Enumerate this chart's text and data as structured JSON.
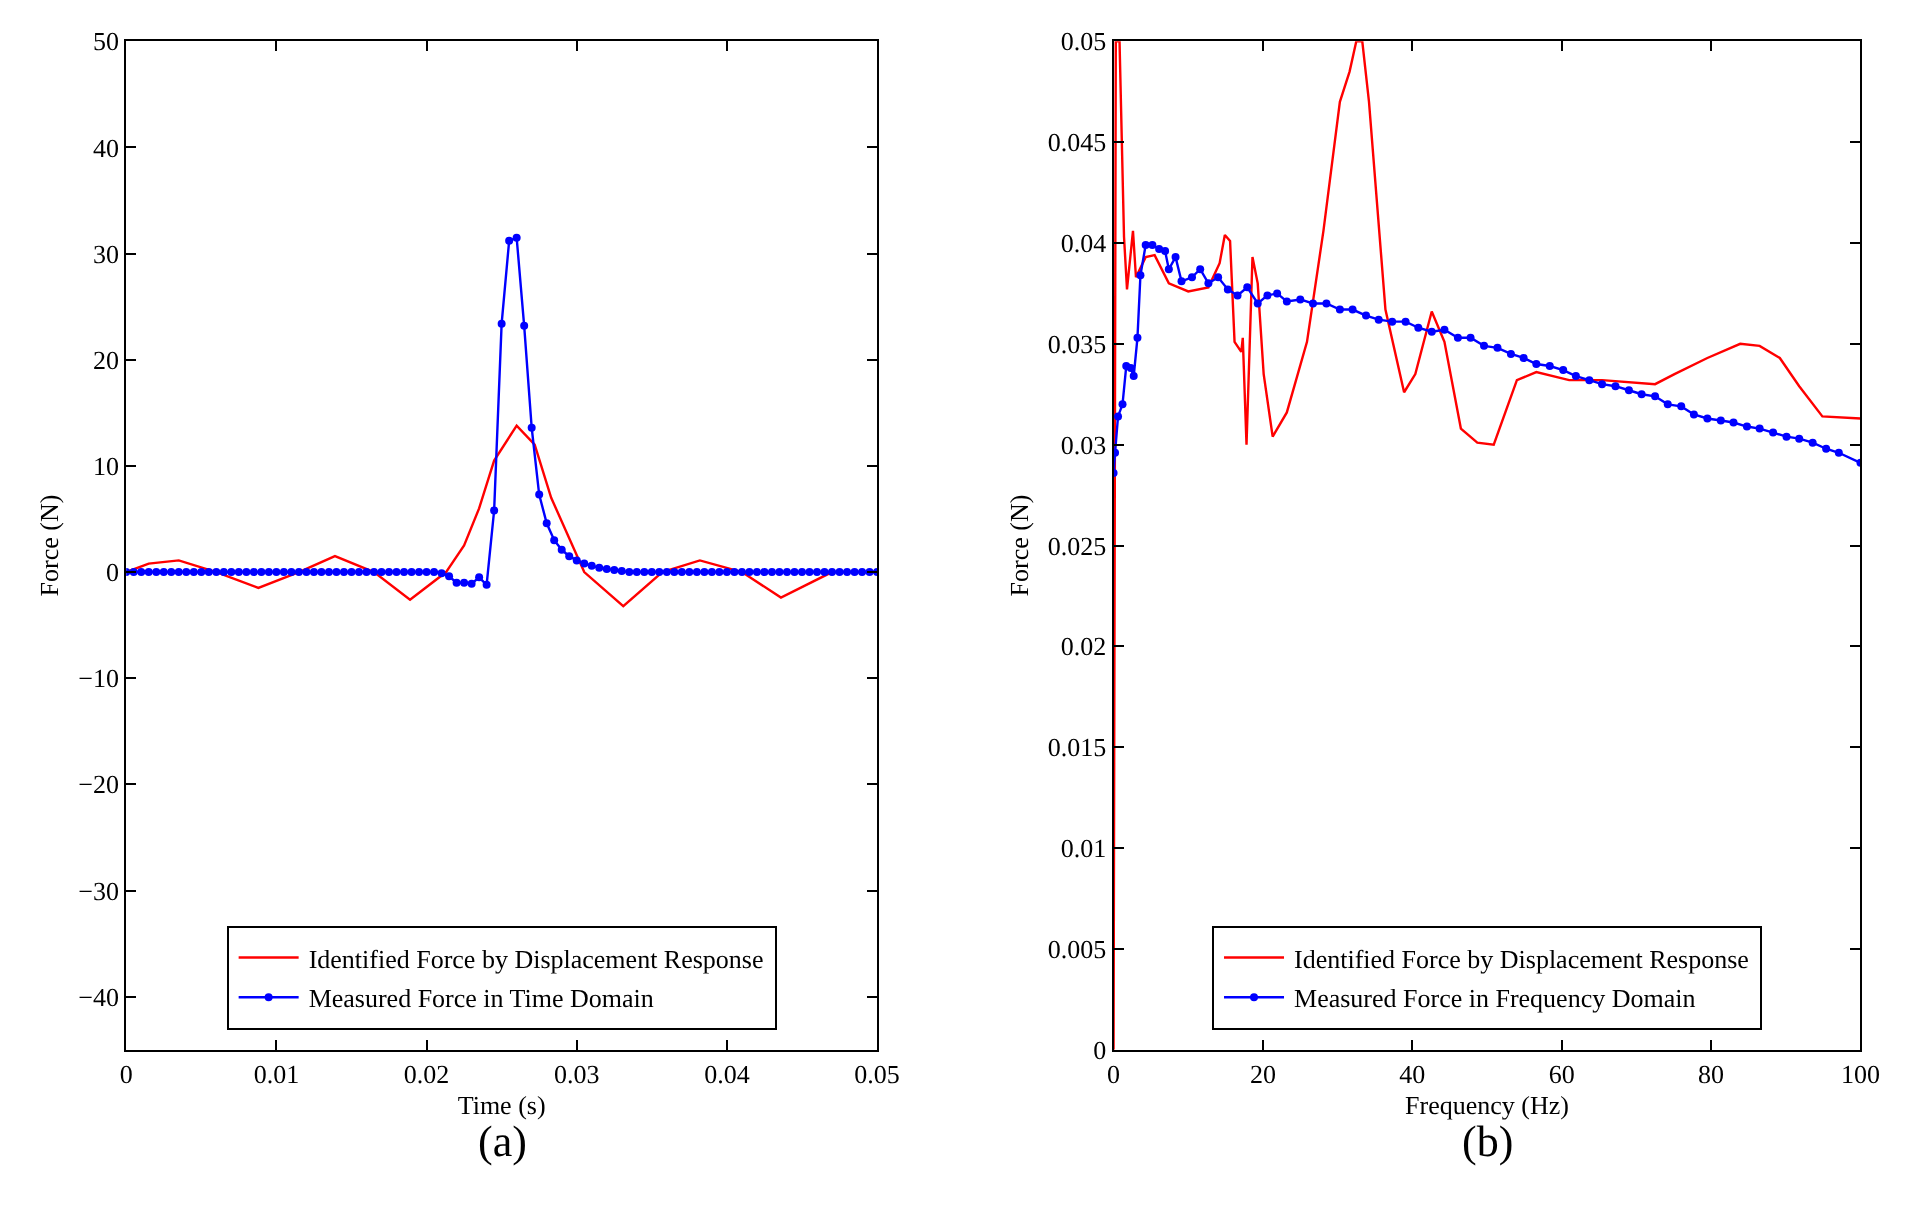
{
  "chart_data": [
    {
      "type": "line",
      "xlabel": "Time (s)",
      "ylabel": "Force (N)",
      "annotations": [
        "(a)"
      ],
      "xlim": [
        0,
        0.05
      ],
      "xticks": [
        0,
        0.01,
        0.02,
        0.03,
        0.04,
        0.05
      ],
      "ylim": [
        -45,
        50
      ],
      "yticks": [
        {
          "value": -40,
          "label": "−40"
        },
        {
          "value": -30,
          "label": "−30"
        },
        {
          "value": -20,
          "label": "−20"
        },
        {
          "value": -10,
          "label": "−10"
        },
        0,
        10,
        20,
        30,
        40,
        50
      ],
      "legend": "bottom",
      "series": [
        {
          "name": "Identified Force by Displacement Response",
          "color": "#ff0000",
          "marker": "none",
          "x": [
            0,
            0.0015,
            0.0035,
            0.006,
            0.0088,
            0.0115,
            0.0139,
            0.0165,
            0.0189,
            0.0213,
            0.0225,
            0.0235,
            0.0245,
            0.026,
            0.0272,
            0.0283,
            0.0305,
            0.0331,
            0.0357,
            0.0382,
            0.041,
            0.0436,
            0.047,
            0.05
          ],
          "values": [
            0,
            0.8,
            1.1,
            0,
            -1.5,
            0,
            1.5,
            0,
            -2.6,
            0,
            2.5,
            6,
            10.5,
            13.8,
            12,
            7,
            0,
            -3.2,
            0,
            1.1,
            0,
            -2.4,
            0,
            0
          ]
        },
        {
          "name": "Measured Force in Time Domain",
          "color": "#0000ff",
          "marker": "circle",
          "x": [
            0,
            0.0005,
            0.001,
            0.0015,
            0.002,
            0.0025,
            0.003,
            0.0035,
            0.004,
            0.0045,
            0.005,
            0.0055,
            0.006,
            0.0065,
            0.007,
            0.0075,
            0.008,
            0.0085,
            0.009,
            0.0095,
            0.01,
            0.0105,
            0.011,
            0.0115,
            0.012,
            0.0125,
            0.013,
            0.0135,
            0.014,
            0.0145,
            0.015,
            0.0155,
            0.016,
            0.0165,
            0.017,
            0.0175,
            0.018,
            0.0185,
            0.019,
            0.0195,
            0.02,
            0.0205,
            0.021,
            0.0215,
            0.022,
            0.0225,
            0.023,
            0.0235,
            0.024,
            0.0245,
            0.025,
            0.0255,
            0.026,
            0.0265,
            0.027,
            0.0275,
            0.028,
            0.0285,
            0.029,
            0.0295,
            0.03,
            0.0305,
            0.031,
            0.0315,
            0.032,
            0.0325,
            0.033,
            0.0335,
            0.034,
            0.0345,
            0.035,
            0.0355,
            0.036,
            0.0365,
            0.037,
            0.0375,
            0.038,
            0.0385,
            0.039,
            0.0395,
            0.04,
            0.0405,
            0.041,
            0.0415,
            0.042,
            0.0425,
            0.043,
            0.0435,
            0.044,
            0.0445,
            0.045,
            0.0455,
            0.046,
            0.0465,
            0.047,
            0.0475,
            0.048,
            0.0485,
            0.049,
            0.0495,
            0.05
          ],
          "values": [
            0,
            0,
            0,
            0,
            0,
            0,
            0,
            0,
            0,
            0,
            0,
            0,
            0,
            0,
            0,
            0,
            0,
            0,
            0,
            0,
            0,
            0,
            0,
            0,
            0,
            0,
            0,
            0,
            0,
            0,
            0,
            0,
            0,
            0,
            0,
            0,
            0,
            0,
            0,
            0,
            0,
            0,
            -0.1,
            -0.4,
            -1.0,
            -1.0,
            -1.1,
            -0.5,
            -1.2,
            5.8,
            23.4,
            31.2,
            31.5,
            23.2,
            13.6,
            7.3,
            4.6,
            3.0,
            2.1,
            1.5,
            1.1,
            0.8,
            0.6,
            0.4,
            0.3,
            0.2,
            0.1,
            0,
            0,
            0,
            0,
            0,
            0,
            0,
            0,
            0,
            0,
            0,
            0,
            0,
            0,
            0,
            0,
            0,
            0,
            0,
            0,
            0,
            0,
            0,
            0,
            0,
            0,
            0,
            0,
            0,
            0,
            0,
            0,
            0,
            0
          ]
        }
      ]
    },
    {
      "type": "line",
      "xlabel": "Frequency (Hz)",
      "ylabel": "Force (N)",
      "annotations": [
        "(b)"
      ],
      "xlim": [
        0,
        100
      ],
      "xticks": [
        0,
        20,
        40,
        60,
        80,
        100
      ],
      "ylim": [
        0,
        0.05
      ],
      "yticks": [
        0,
        0.005,
        0.01,
        0.015,
        0.02,
        0.025,
        0.03,
        0.035,
        0.04,
        0.045,
        0.05
      ],
      "legend": "bottom",
      "series": [
        {
          "name": "Identified Force by Displacement Response",
          "color": "#ff0000",
          "marker": "none",
          "x": [
            0,
            0.3,
            0.8,
            1.4,
            1.8,
            2.6,
            3.0,
            4.3,
            5.5,
            7.4,
            10,
            12.7,
            14.2,
            14.9,
            15.6,
            16.2,
            17.1,
            17.3,
            17.8,
            18.6,
            19.3,
            20.1,
            21.3,
            23.2,
            25.9,
            28.1,
            30.3,
            31.6,
            32.5,
            33.3,
            34.2,
            36.4,
            38.9,
            40.4,
            42.6,
            44.3,
            46.5,
            48.7,
            50.9,
            54.0,
            56.6,
            61.0,
            65.4,
            72.5,
            75.1,
            79.5,
            83.9,
            86.5,
            89.2,
            91.8,
            94.9,
            100
          ],
          "values": [
            0,
            0.05,
            0.05,
            0.0403,
            0.0377,
            0.0406,
            0.0383,
            0.0393,
            0.0394,
            0.038,
            0.0376,
            0.0378,
            0.039,
            0.0404,
            0.0401,
            0.0351,
            0.0346,
            0.0353,
            0.03,
            0.0393,
            0.038,
            0.0335,
            0.0304,
            0.0316,
            0.0351,
            0.0406,
            0.047,
            0.0485,
            0.05,
            0.05,
            0.047,
            0.0367,
            0.0326,
            0.0335,
            0.0366,
            0.0351,
            0.0308,
            0.0301,
            0.03,
            0.0332,
            0.0336,
            0.0332,
            0.0332,
            0.033,
            0.0335,
            0.0343,
            0.035,
            0.0349,
            0.0343,
            0.0329,
            0.0314,
            0.0313
          ]
        },
        {
          "name": "Measured Force in Frequency Domain",
          "color": "#0000ff",
          "marker": "circle",
          "x": [
            0,
            0.2,
            0.6,
            1.2,
            1.7,
            2.3,
            2.7,
            3.2,
            3.6,
            4.3,
            5.2,
            6.1,
            6.9,
            7.4,
            8.3,
            9.1,
            10.5,
            11.6,
            12.7,
            14.0,
            15.3,
            16.6,
            17.9,
            19.3,
            20.6,
            21.9,
            23.2,
            25.0,
            26.7,
            28.5,
            30.3,
            32.0,
            33.8,
            35.5,
            37.3,
            39.1,
            40.8,
            42.6,
            44.3,
            46.1,
            47.8,
            49.6,
            51.4,
            53.2,
            54.9,
            56.6,
            58.4,
            60.2,
            61.9,
            63.7,
            65.4,
            67.2,
            69.0,
            70.7,
            72.5,
            74.2,
            76.0,
            77.7,
            79.5,
            81.3,
            83.0,
            84.8,
            86.5,
            88.3,
            90.1,
            91.8,
            93.6,
            95.4,
            97.1,
            100
          ],
          "values": [
            0.0286,
            0.0296,
            0.0314,
            0.032,
            0.0339,
            0.0338,
            0.0334,
            0.0353,
            0.0384,
            0.0399,
            0.0399,
            0.0397,
            0.0396,
            0.0387,
            0.0393,
            0.0381,
            0.0383,
            0.0387,
            0.038,
            0.0383,
            0.0377,
            0.0374,
            0.0378,
            0.037,
            0.0374,
            0.0375,
            0.0371,
            0.0372,
            0.037,
            0.037,
            0.0367,
            0.0367,
            0.0364,
            0.0362,
            0.0361,
            0.0361,
            0.0358,
            0.0356,
            0.0357,
            0.0353,
            0.0353,
            0.0349,
            0.0348,
            0.0345,
            0.0343,
            0.034,
            0.0339,
            0.0337,
            0.0334,
            0.0332,
            0.033,
            0.0329,
            0.0327,
            0.0325,
            0.0324,
            0.032,
            0.0319,
            0.0315,
            0.0313,
            0.0312,
            0.0311,
            0.0309,
            0.0308,
            0.0306,
            0.0304,
            0.0303,
            0.0301,
            0.0298,
            0.0296,
            0.0291
          ]
        }
      ]
    }
  ]
}
